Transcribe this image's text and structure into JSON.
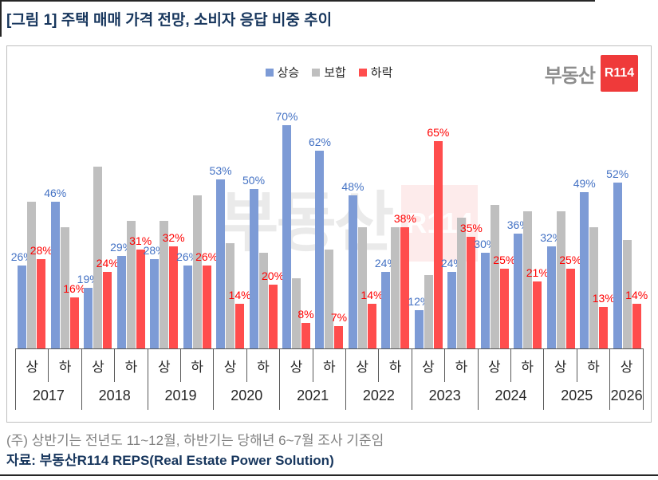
{
  "page": {
    "title": "[그림 1] 주택 매매 가격 전망, 소비자 응답 비중 추이",
    "footnote": "(주) 상반기는 전년도 11~12월, 하반기는 당해년 6~7월 조사 기준임",
    "source": "자료: 부동산R114 REPS(Real Estate Power Solution)"
  },
  "logo": {
    "brand": "부동산",
    "badge": "R114"
  },
  "watermark": {
    "brand": "부동산",
    "badge": "R114"
  },
  "chart_data": {
    "type": "bar",
    "unit": "%",
    "ylim": [
      0,
      80
    ],
    "grid": false,
    "legend_position": "top-center",
    "categories": [
      "2017 상",
      "2017 하",
      "2018 상",
      "2018 하",
      "2019 상",
      "2019 하",
      "2020 상",
      "2020 하",
      "2021 상",
      "2021 하",
      "2022 상",
      "2022 하",
      "2023 상",
      "2023 하",
      "2024 상",
      "2024 하",
      "2025 상",
      "2025 하",
      "2026 상"
    ],
    "years": [
      {
        "year": "2017",
        "halves": [
          "상",
          "하"
        ]
      },
      {
        "year": "2018",
        "halves": [
          "상",
          "하"
        ]
      },
      {
        "year": "2019",
        "halves": [
          "상",
          "하"
        ]
      },
      {
        "year": "2020",
        "halves": [
          "상",
          "하"
        ]
      },
      {
        "year": "2021",
        "halves": [
          "상",
          "하"
        ]
      },
      {
        "year": "2022",
        "halves": [
          "상",
          "하"
        ]
      },
      {
        "year": "2023",
        "halves": [
          "상",
          "하"
        ]
      },
      {
        "year": "2024",
        "halves": [
          "상",
          "하"
        ]
      },
      {
        "year": "2025",
        "halves": [
          "상",
          "하"
        ]
      },
      {
        "year": "2026",
        "halves": [
          "상"
        ]
      }
    ],
    "series": [
      {
        "name": "상승",
        "key": "rise",
        "color": "#7D9BD6",
        "label_color": "#4472C4",
        "show_labels": true,
        "values": [
          26,
          46,
          19,
          29,
          28,
          26,
          53,
          50,
          70,
          62,
          48,
          24,
          12,
          24,
          30,
          36,
          32,
          49,
          52
        ]
      },
      {
        "name": "보합",
        "key": "flat",
        "color": "#BFBFBF",
        "label_color": null,
        "show_labels": false,
        "values": [
          46,
          38,
          57,
          40,
          40,
          48,
          33,
          30,
          22,
          31,
          38,
          38,
          23,
          41,
          45,
          43,
          43,
          38,
          34
        ]
      },
      {
        "name": "하락",
        "key": "fall",
        "color": "#FF4D4D",
        "label_color": "#FF0000",
        "show_labels": true,
        "values": [
          28,
          16,
          24,
          31,
          32,
          26,
          14,
          20,
          8,
          7,
          14,
          38,
          65,
          35,
          25,
          21,
          25,
          13,
          14
        ]
      }
    ]
  }
}
